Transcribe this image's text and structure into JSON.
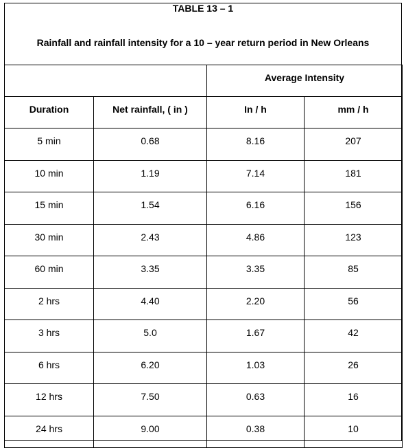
{
  "title": "TABLE 13 – 1",
  "subtitle": "Rainfall and rainfall intensity for a 10 – year return period in New Orleans",
  "group_header": "Average Intensity",
  "columns": [
    "Duration",
    "Net rainfall, ( in )",
    "In / h",
    "mm / h"
  ],
  "rows": [
    [
      "5 min",
      "0.68",
      "8.16",
      "207"
    ],
    [
      "10 min",
      "1.19",
      "7.14",
      "181"
    ],
    [
      "15 min",
      "1.54",
      "6.16",
      "156"
    ],
    [
      "30 min",
      "2.43",
      "4.86",
      "123"
    ],
    [
      "60 min",
      "3.35",
      "3.35",
      "85"
    ],
    [
      "2 hrs",
      "4.40",
      "2.20",
      "56"
    ],
    [
      "3 hrs",
      "5.0",
      "1.67",
      "42"
    ],
    [
      "6 hrs",
      "6.20",
      "1.03",
      "26"
    ],
    [
      "12 hrs",
      "7.50",
      "0.63",
      "16"
    ],
    [
      "24 hrs",
      "9.00",
      "0.38",
      "10"
    ]
  ]
}
